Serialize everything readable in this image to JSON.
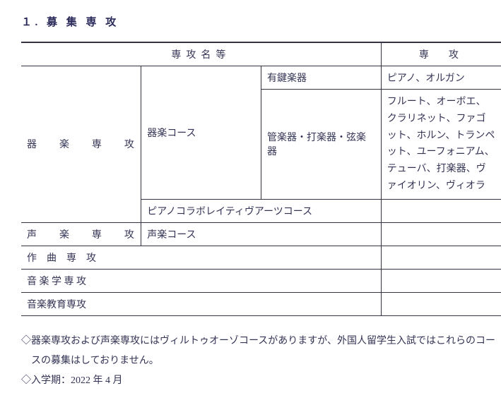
{
  "heading": "１. 募 集 専 攻",
  "table": {
    "header": {
      "col_name": "専攻名等",
      "col_detail": "専　攻"
    },
    "rows": {
      "instrumental": {
        "major": "器楽専攻",
        "course": "器楽コース",
        "sub1": {
          "label": "有鍵楽器",
          "detail": "ピアノ、オルガン"
        },
        "sub2": {
          "label": "管楽器・打楽器・弦楽器",
          "detail": "フルート、オーボエ、クラリネット、ファゴット、ホルン、トランペット、ユーフォニアム、テューバ、打楽器、ヴァイオリン、ヴィオラ"
        },
        "pianocollab": "ピアノコラボレイティヴアーツコース"
      },
      "vocal": {
        "major": "声楽専攻",
        "course": "声楽コース"
      },
      "composition": {
        "major": "作　曲　専　攻"
      },
      "musicology": {
        "major": "音 楽 学 専 攻"
      },
      "education": {
        "major": "音楽教育専攻"
      }
    }
  },
  "notes": {
    "line1": "◇器楽専攻および声楽専攻にはヴィルトゥオーゾコースがありますが、外国人留学生入試ではこれらのコースの募集はしておりません。",
    "line2": "◇入学期：2022 年 4 月"
  }
}
